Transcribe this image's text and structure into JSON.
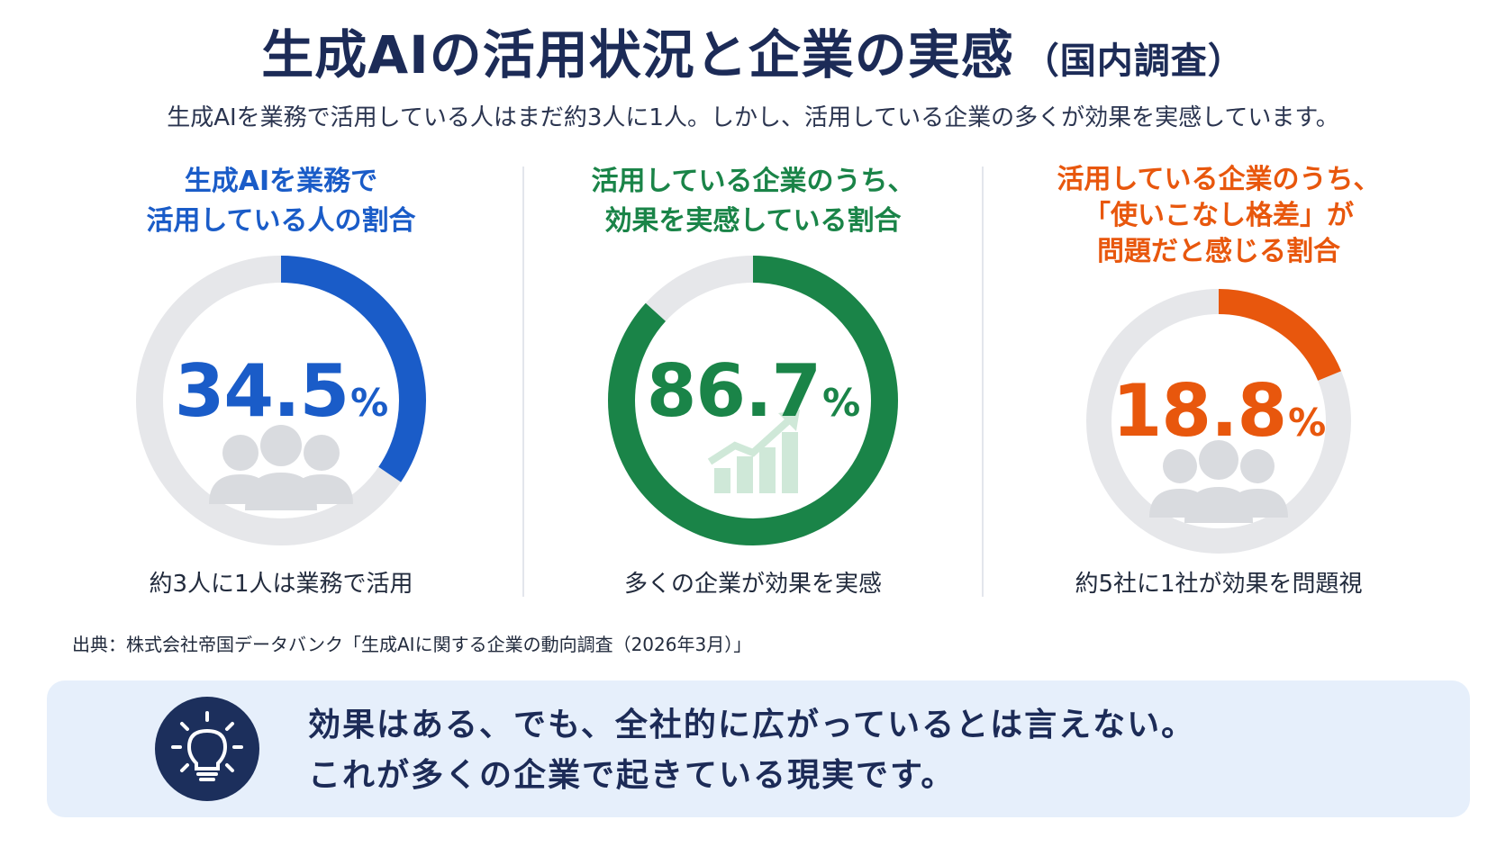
{
  "header": {
    "title": "生成AIの活用状況と企業の実感",
    "title_suffix": "（国内調査）",
    "subtitle": "生成AIを業務で活用している人はまだ約3人に1人。しかし、活用している企業の多くが効果を実感しています。"
  },
  "chart_data": [
    {
      "type": "donut",
      "title_lines": [
        "生成AIを業務で",
        "活用している人の割合"
      ],
      "value": 34.5,
      "value_label": "34.5",
      "unit": "%",
      "caption": "約3人に1人は業務で活用",
      "color": "#1a5cc8",
      "track_color": "#e6e7ea",
      "icon": "people-group-icon"
    },
    {
      "type": "donut",
      "title_lines": [
        "活用している企業のうち、",
        "効果を実感している割合"
      ],
      "value": 86.7,
      "value_label": "86.7",
      "unit": "%",
      "caption": "多くの企業が効果を実感",
      "color": "#1a8448",
      "track_color": "#e6e7ea",
      "icon": "growth-chart-icon"
    },
    {
      "type": "donut",
      "title_lines": [
        "活用している企業のうち、",
        "「使いこなし格差」が",
        "問題だと感じる割合"
      ],
      "value": 18.8,
      "value_label": "18.8",
      "unit": "%",
      "caption": "約5社に1社が効果を問題視",
      "color": "#e8570d",
      "track_color": "#e6e7ea",
      "icon": "people-group-icon"
    }
  ],
  "source": "出典：株式会社帝国データバンク「生成AIに関する企業の動向調査（2026年3月）」",
  "callout": {
    "icon": "lightbulb-icon",
    "line1": "効果はある、でも、全社的に広がっているとは言えない。",
    "line2": "これが多くの企業で起きている現実です。"
  }
}
